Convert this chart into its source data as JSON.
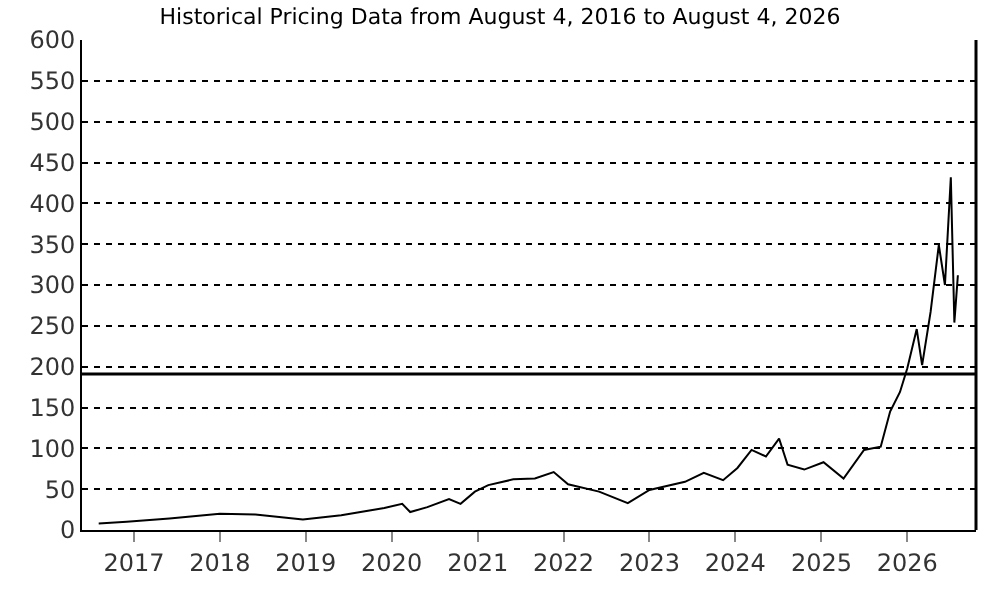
{
  "chart_data": {
    "type": "line",
    "title": "Historical Pricing Data from August 4, 2016 to August 4, 2026",
    "x": [
      "2016-08-04",
      "2016-12-01",
      "2017-06-01",
      "2018-01-01",
      "2018-06-01",
      "2018-12-20",
      "2019-06-01",
      "2019-12-01",
      "2020-02-15",
      "2020-03-20",
      "2020-06-01",
      "2020-09-01",
      "2020-10-20",
      "2020-12-20",
      "2021-02-15",
      "2021-06-01",
      "2021-09-01",
      "2021-11-20",
      "2022-01-20",
      "2022-06-01",
      "2022-10-01",
      "2023-01-01",
      "2023-06-01",
      "2023-08-20",
      "2023-11-10",
      "2024-01-10",
      "2024-03-10",
      "2024-05-10",
      "2024-07-05",
      "2024-08-10",
      "2024-10-20",
      "2025-01-10",
      "2025-04-05",
      "2025-07-01",
      "2025-09-10",
      "2025-10-20",
      "2025-12-01",
      "2026-01-01",
      "2026-02-10",
      "2026-03-05",
      "2026-04-10",
      "2026-05-15",
      "2026-06-10",
      "2026-07-05",
      "2026-07-20",
      "2026-08-04"
    ],
    "series": [
      {
        "color": "#000000",
        "values": [
          8,
          10,
          14,
          20,
          19,
          13,
          18,
          27,
          32,
          22,
          28,
          38,
          32,
          47,
          55,
          62,
          63,
          71,
          56,
          47,
          33,
          49,
          59,
          70,
          61,
          76,
          98,
          90,
          112,
          80,
          74,
          83,
          63,
          98,
          102,
          145,
          169,
          198,
          246,
          202,
          267,
          349,
          300,
          432,
          254,
          312
        ]
      }
    ],
    "xlim": [
      "2016-05-25",
      "2026-10-20"
    ],
    "xticks": [
      {
        "value": "2017-01-01",
        "label": "2017"
      },
      {
        "value": "2018-01-01",
        "label": "2018"
      },
      {
        "value": "2019-01-01",
        "label": "2019"
      },
      {
        "value": "2020-01-01",
        "label": "2020"
      },
      {
        "value": "2021-01-01",
        "label": "2021"
      },
      {
        "value": "2022-01-01",
        "label": "2022"
      },
      {
        "value": "2023-01-01",
        "label": "2023"
      },
      {
        "value": "2024-01-01",
        "label": "2024"
      },
      {
        "value": "2025-01-01",
        "label": "2025"
      },
      {
        "value": "2026-01-01",
        "label": "2026"
      }
    ],
    "ylim": [
      0,
      600
    ],
    "yticks": [
      0,
      50,
      100,
      150,
      200,
      250,
      300,
      350,
      400,
      450,
      500,
      550,
      600
    ],
    "grid": "y",
    "marker": "none",
    "line_style": "solid",
    "ref_lines": [
      {
        "axis": "y",
        "value": 191,
        "color": "#000000",
        "line_style": "solid"
      }
    ]
  }
}
